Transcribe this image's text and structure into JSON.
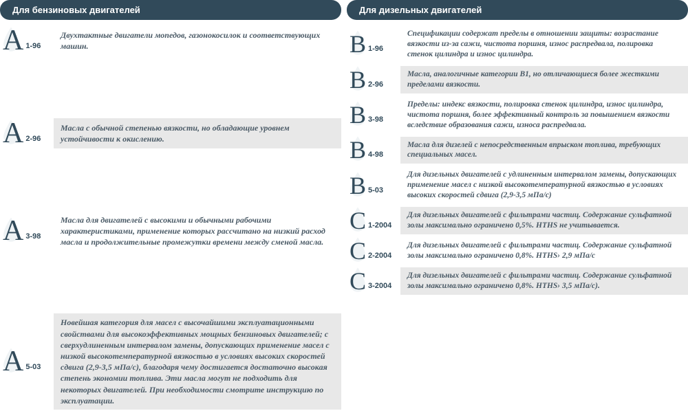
{
  "colors": {
    "header_bg": "#314a5a",
    "header_text": "#ffffff",
    "shade_bg": "#e8e8e8",
    "text_color": "#4a5a66",
    "label_color": "#314a5a",
    "drop_fill": "#e6ecef"
  },
  "left": {
    "title": "Для бензиновых двигателей",
    "items": [
      {
        "letter": "A",
        "sub": "1-96",
        "shaded": false,
        "desc": "Двухтактные двигатели мопедов, газонокосилок и соответствующих машин."
      },
      {
        "letter": "A",
        "sub": "2-96",
        "shaded": true,
        "desc": "Масла с обычной степенью вязкости, но обладающие уровнем устойчивости к окислению."
      },
      {
        "letter": "A",
        "sub": "3-98",
        "shaded": false,
        "desc": "Масла для двигателей с высокими и обычными рабочими характеристиками, применение которых рассчитано на низкий расход масла и продолжительные промежутки времени между сменой масла."
      },
      {
        "letter": "A",
        "sub": "5-03",
        "shaded": true,
        "desc": "Новейшая категория для масел с высочайшими эксплуатационными свойствами для высокоэффективных мощных бензиновых двигателей; с сверхудлиненным интервалом замены, допускающих применение масел с низкой высокотемпературной вязкостью в условиях высоких скоростей сдвига (2,9-3,5 мПа/с), благодаря чему достигается достаточно высокая степень экономии топлива. Эти масла могут не подходить для некоторых двигателей. При необходимости смотрите инструкцию по эксплуатации."
      }
    ]
  },
  "right": {
    "title": "Для дизельных двигателей",
    "items": [
      {
        "letter": "B",
        "sub": "1-96",
        "shaded": false,
        "desc": "Спецификации содержат пределы в отношении защиты: возрастание вязкости из-за сажи, чистота поршня, износ распредвала, полировка стенок цилиндра и износ цилиндра."
      },
      {
        "letter": "B",
        "sub": "2-96",
        "shaded": true,
        "desc": "Масла, аналогичные категории В1, но отличающиеся более жесткими пределами вязкости."
      },
      {
        "letter": "B",
        "sub": "3-98",
        "shaded": false,
        "desc": "Пределы: индекс вязкости, полировка стенок цилиндра, износ цилиндра, чистота поршня, более эффективный контроль за повышением вязкости вследствие образования сажи, износа распредвала."
      },
      {
        "letter": "B",
        "sub": "4-98",
        "shaded": true,
        "desc": "Масла для дизелей с непосредственным впрыском топлива, требующих специальных масел."
      },
      {
        "letter": "B",
        "sub": "5-03",
        "shaded": false,
        "desc": "Для дизельных двигателей с удлиненным интервалом замены, допускающих применение масел с низкой высокотемпературной вязкостью в условиях высоких скоростей сдвига (2,9-3,5 мПа/с)"
      },
      {
        "letter": "C",
        "sub": "1-2004",
        "shaded": true,
        "desc": "Для дизельных двигателей с фильтрами частиц. Содержание сульфатной золы максимально ограничено 0,5%. HTHS не учитывается."
      },
      {
        "letter": "C",
        "sub": "2-2004",
        "shaded": false,
        "desc": "Для дизельных двигателей с фильтрами частиц. Содержание сульфатной золы максимально ограничено 0,8%. HTHS› 2,9 мПа/с"
      },
      {
        "letter": "C",
        "sub": "3-2004",
        "shaded": true,
        "desc": "Для дизельных двигателей с фильтрами частиц. Содержание сульфатной золы максимально ограничено 0,8%. HTHS› 3,5 мПа/с)."
      }
    ]
  }
}
